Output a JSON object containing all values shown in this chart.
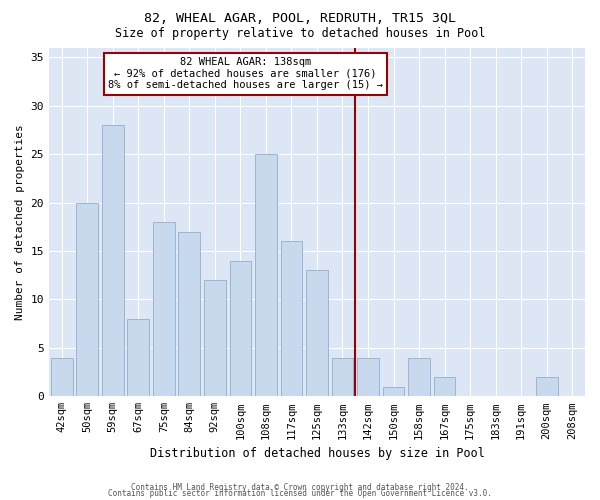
{
  "title1": "82, WHEAL AGAR, POOL, REDRUTH, TR15 3QL",
  "title2": "Size of property relative to detached houses in Pool",
  "xlabel": "Distribution of detached houses by size in Pool",
  "ylabel": "Number of detached properties",
  "categories": [
    "42sqm",
    "50sqm",
    "59sqm",
    "67sqm",
    "75sqm",
    "84sqm",
    "92sqm",
    "100sqm",
    "108sqm",
    "117sqm",
    "125sqm",
    "133sqm",
    "142sqm",
    "150sqm",
    "158sqm",
    "167sqm",
    "175sqm",
    "183sqm",
    "191sqm",
    "200sqm",
    "208sqm"
  ],
  "values": [
    4,
    20,
    28,
    8,
    18,
    17,
    12,
    14,
    25,
    16,
    13,
    4,
    4,
    1,
    4,
    2,
    0,
    0,
    0,
    2,
    0
  ],
  "bar_color": "#c8d9ee",
  "bar_edge_color": "#9ab5d5",
  "vline_between": [
    11,
    12
  ],
  "vline_color": "#990000",
  "annotation_title": "82 WHEAL AGAR: 138sqm",
  "annotation_line1": "← 92% of detached houses are smaller (176)",
  "annotation_line2": "8% of semi-detached houses are larger (15) →",
  "annotation_box_color": "#990000",
  "ylim": [
    0,
    36
  ],
  "yticks": [
    0,
    5,
    10,
    15,
    20,
    25,
    30,
    35
  ],
  "plot_bg_color": "#dce6f5",
  "footer1": "Contains HM Land Registry data © Crown copyright and database right 2024.",
  "footer2": "Contains public sector information licensed under the Open Government Licence v3.0."
}
